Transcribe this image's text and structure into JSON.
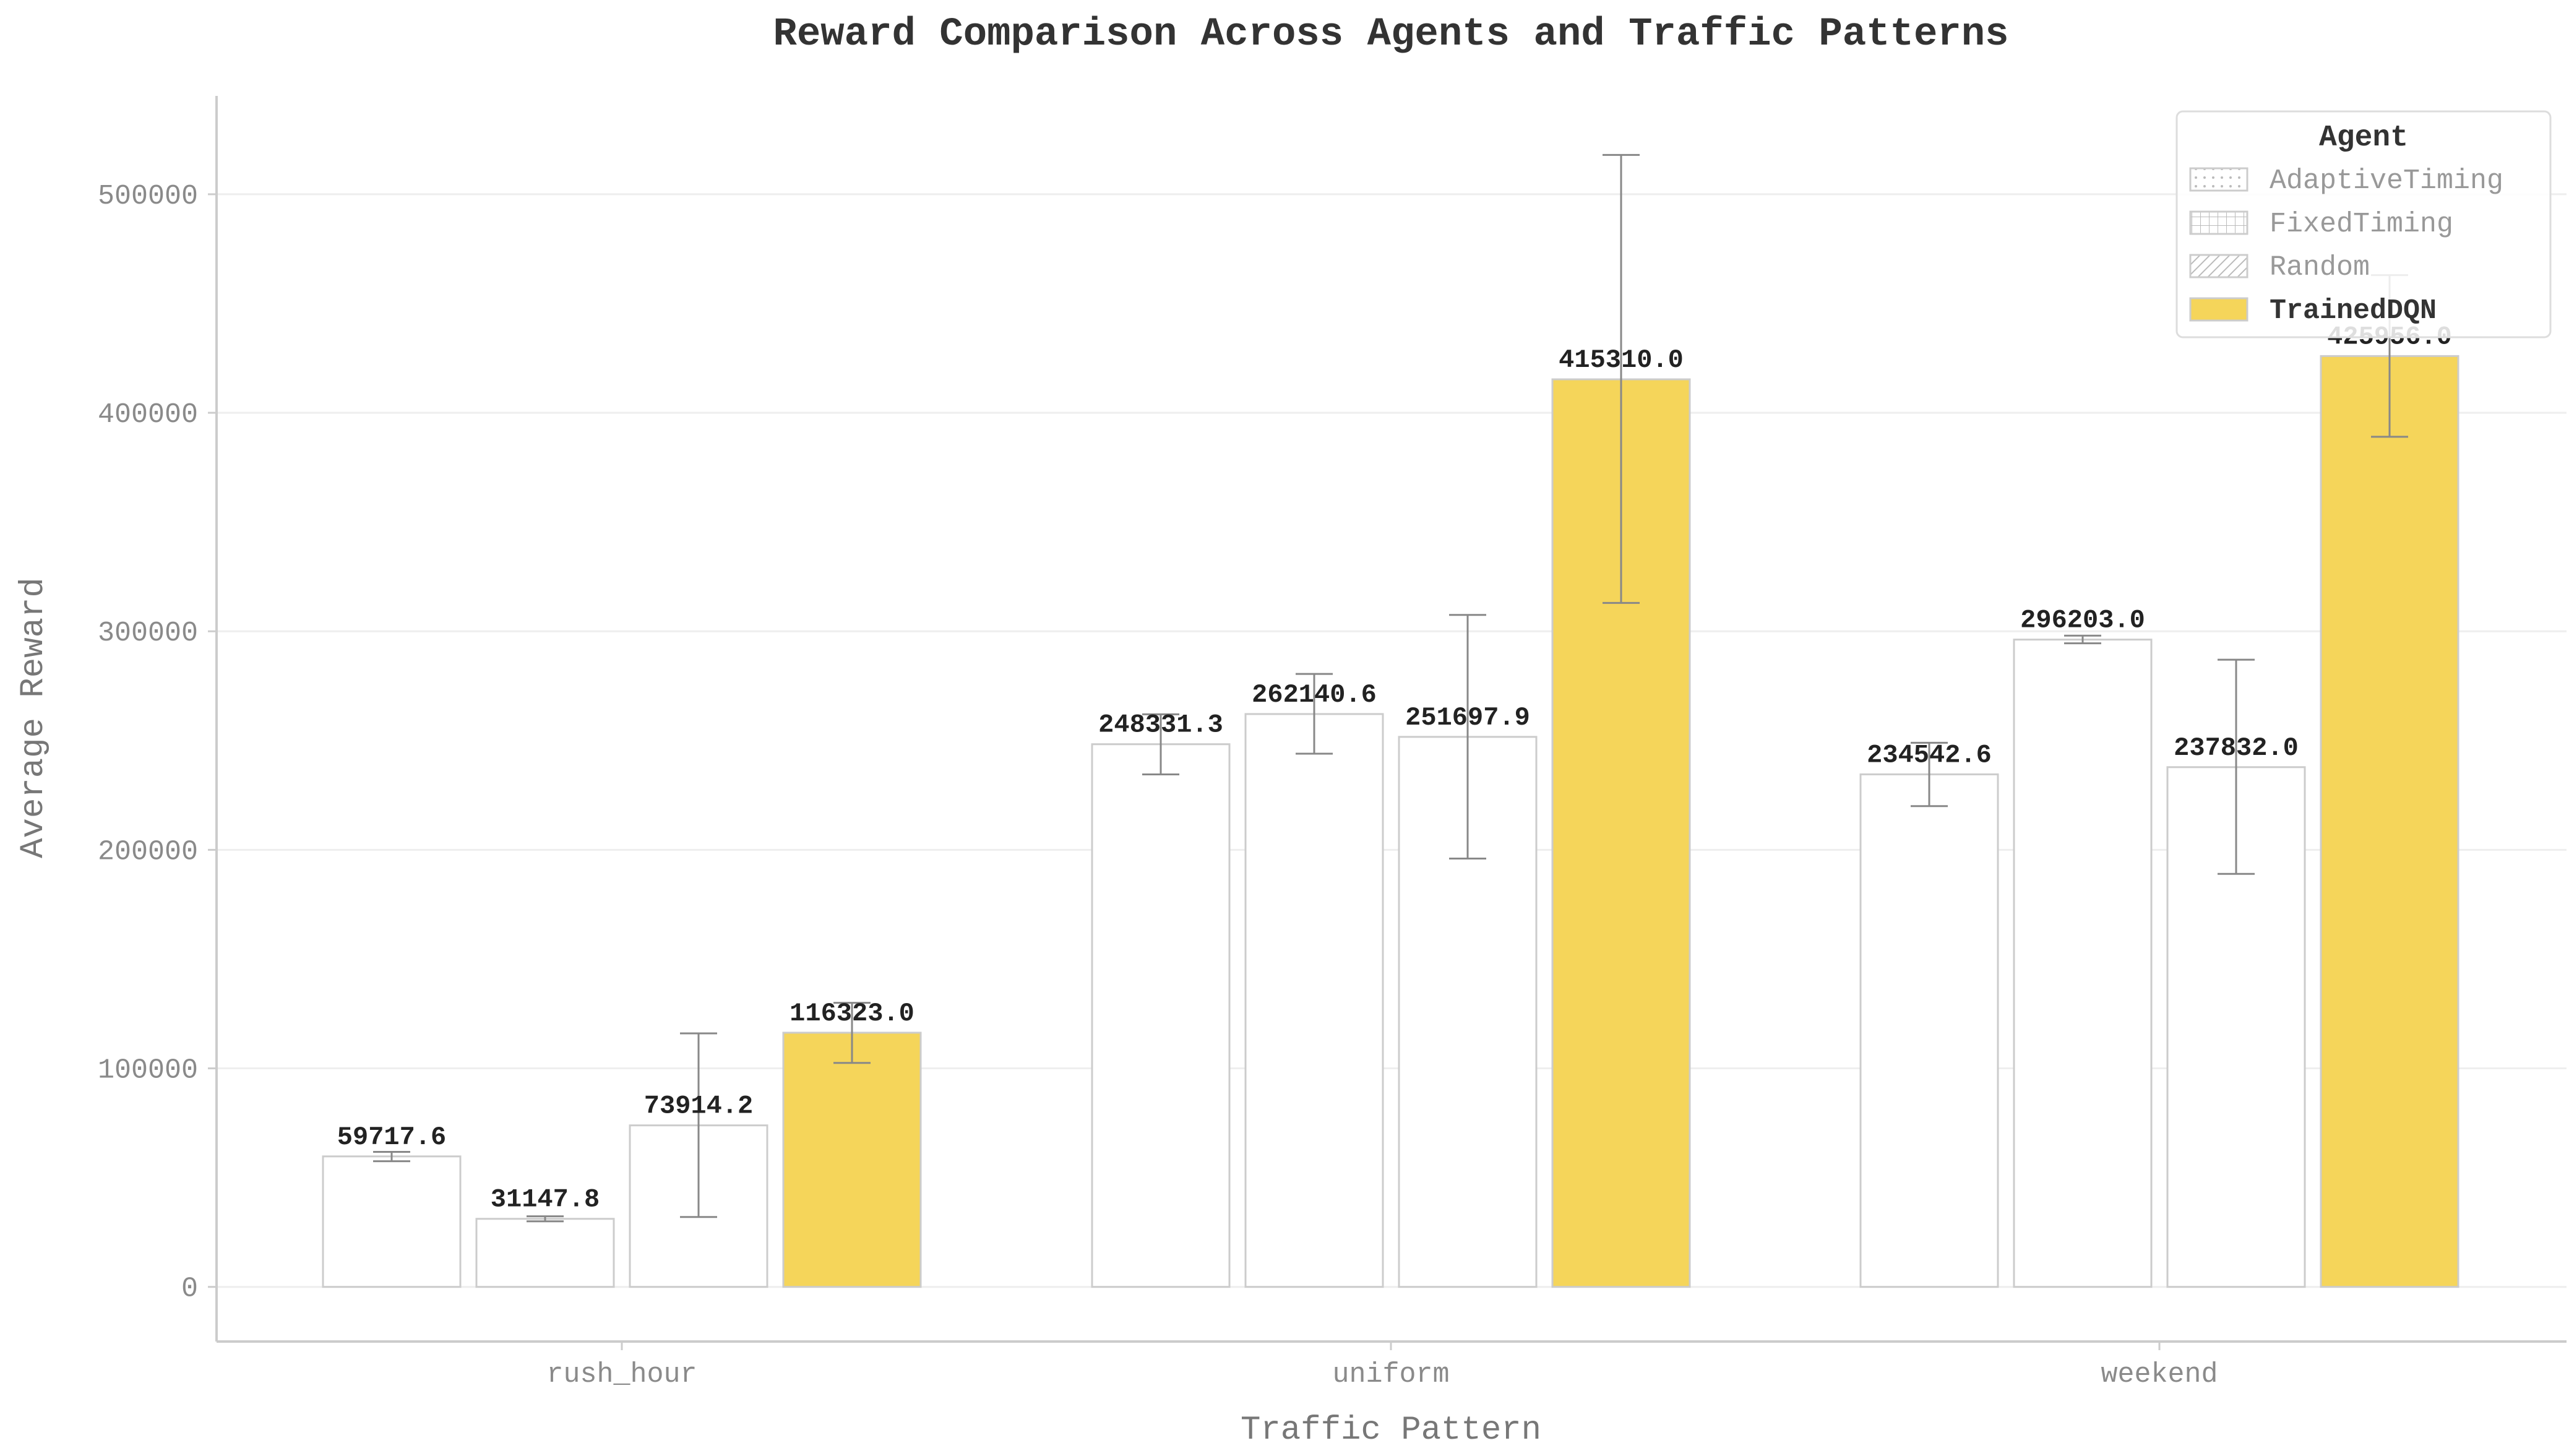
{
  "chart_data": {
    "type": "bar",
    "title": "Reward Comparison Across Agents and Traffic Patterns",
    "xlabel": "Traffic Pattern",
    "ylabel": "Average Reward",
    "categories": [
      "rush_hour",
      "uniform",
      "weekend"
    ],
    "ylim": [
      -25000,
      545000
    ],
    "yticks": [
      0,
      100000,
      200000,
      300000,
      400000,
      500000
    ],
    "grid": true,
    "legend": {
      "title": "Agent",
      "placement": "top-right"
    },
    "series": [
      {
        "name": "AdaptiveTiming",
        "values": [
          59717.6,
          248331.3,
          234542.6
        ],
        "err_low": [
          57500,
          234500,
          220000
        ],
        "err_high": [
          61800,
          262000,
          249000
        ],
        "labels": [
          "59717.6",
          "248331.3",
          "234542.6"
        ],
        "fill": "#ffffff",
        "pattern": "dots"
      },
      {
        "name": "FixedTiming",
        "values": [
          31147.8,
          262140.6,
          296203.0
        ],
        "err_low": [
          30000,
          244000,
          294500
        ],
        "err_high": [
          32300,
          280500,
          298000
        ],
        "labels": [
          "31147.8",
          "262140.6",
          "296203.0"
        ],
        "fill": "#ffffff",
        "pattern": "grid"
      },
      {
        "name": "Random",
        "values": [
          73914.2,
          251697.9,
          237832.0
        ],
        "err_low": [
          32000,
          196000,
          189000
        ],
        "err_high": [
          116000,
          307500,
          287000
        ],
        "labels": [
          "73914.2",
          "251697.9",
          "237832.0"
        ],
        "fill": "#ffffff",
        "pattern": "hatch"
      },
      {
        "name": "TrainedDQN",
        "values": [
          116323.0,
          415310.0,
          425956.0
        ],
        "err_low": [
          102500,
          313000,
          389000
        ],
        "err_high": [
          130000,
          518000,
          463000
        ],
        "labels": [
          "116323.0",
          "415310.0",
          "425956.0"
        ],
        "fill": "#f5d55a",
        "pattern": "none"
      }
    ],
    "colors": {
      "highlight": "#f5d55a",
      "bar_outline": "#cccccc",
      "error_bar": "#888888",
      "grid": "#eeeeee"
    }
  }
}
